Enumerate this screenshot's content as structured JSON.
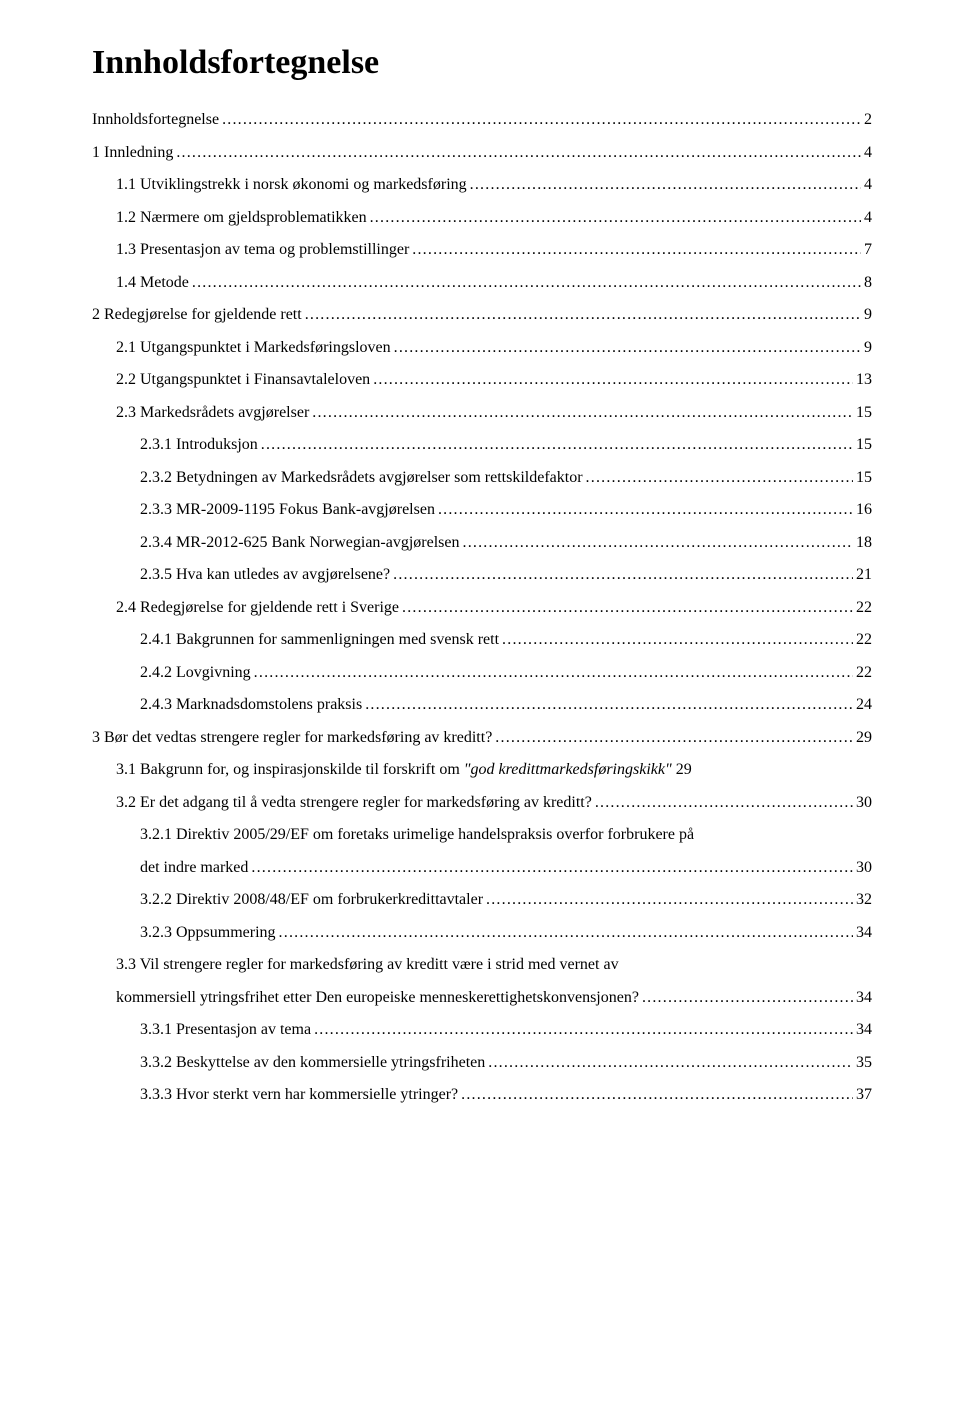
{
  "title": "Innholdsfortegnelse",
  "entries": [
    {
      "label": "Innholdsfortegnelse",
      "page": "2",
      "indent": 0,
      "italic": false
    },
    {
      "label": "1   Innledning",
      "page": "4",
      "indent": 0,
      "italic": false
    },
    {
      "label": "1.1   Utviklingstrekk i norsk økonomi og markedsføring",
      "page": "4",
      "indent": 1,
      "italic": false
    },
    {
      "label": "1.2   Nærmere om gjeldsproblematikken",
      "page": "4",
      "indent": 1,
      "italic": false
    },
    {
      "label": "1.3   Presentasjon av tema og problemstillinger",
      "page": "7",
      "indent": 1,
      "italic": false
    },
    {
      "label": "1.4   Metode",
      "page": "8",
      "indent": 1,
      "italic": false
    },
    {
      "label": "2   Redegjørelse for gjeldende rett",
      "page": "9",
      "indent": 0,
      "italic": false
    },
    {
      "label": "2.1   Utgangspunktet i Markedsføringsloven",
      "page": "9",
      "indent": 1,
      "italic": false
    },
    {
      "label": "2.2   Utgangspunktet i Finansavtaleloven",
      "page": "13",
      "indent": 1,
      "italic": false
    },
    {
      "label": "2.3   Markedsrådets avgjørelser",
      "page": "15",
      "indent": 1,
      "italic": false
    },
    {
      "label": "2.3.1   Introduksjon",
      "page": "15",
      "indent": 2,
      "italic": false
    },
    {
      "label": "2.3.2   Betydningen av Markedsrådets avgjørelser som rettskildefaktor",
      "page": "15",
      "indent": 2,
      "italic": false
    },
    {
      "label": "2.3.3   MR-2009-1195 Fokus Bank-avgjørelsen",
      "page": "16",
      "indent": 2,
      "italic": false
    },
    {
      "label": "2.3.4   MR-2012-625 Bank Norwegian-avgjørelsen",
      "page": "18",
      "indent": 2,
      "italic": false
    },
    {
      "label": "2.3.5   Hva kan utledes av avgjørelsene?",
      "page": "21",
      "indent": 2,
      "italic": false
    },
    {
      "label": "2.4   Redegjørelse for gjeldende rett i Sverige",
      "page": "22",
      "indent": 1,
      "italic": false
    },
    {
      "label": "2.4.1   Bakgrunnen for sammenligningen med svensk rett",
      "page": "22",
      "indent": 2,
      "italic": false
    },
    {
      "label": "2.4.2   Lovgivning",
      "page": "22",
      "indent": 2,
      "italic": false
    },
    {
      "label": "2.4.3   Marknadsdomstolens praksis",
      "page": "24",
      "indent": 2,
      "italic": false
    },
    {
      "label": "3   Bør det vedtas strengere regler for markedsføring av kreditt?",
      "page": "29",
      "indent": 0,
      "italic": false
    },
    {
      "label_pre": "3.1   Bakgrunn for, og inspirasjonskilde til forskrift om ",
      "label_ital": "\"god kredittmarkedsføringskikk\"",
      "page": "29",
      "indent": 1,
      "italic": true,
      "nodots": true
    },
    {
      "label": "3.2   Er det adgang til å vedta strengere regler for markedsføring av kreditt?",
      "page": "30",
      "indent": 1,
      "italic": false
    },
    {
      "label_multi1": "3.2.1   Direktiv 2005/29/EF om foretaks urimelige handelspraksis overfor forbrukere på",
      "label_multi2": "det indre marked",
      "page": "30",
      "indent": 2,
      "multi": true
    },
    {
      "label": "3.2.2   Direktiv 2008/48/EF om forbrukerkredittavtaler",
      "page": "32",
      "indent": 2,
      "italic": false
    },
    {
      "label": "3.2.3   Oppsummering",
      "page": "34",
      "indent": 2,
      "italic": false
    },
    {
      "label_multi1": "3.3   Vil strengere regler for markedsføring av kreditt være i strid med vernet av",
      "label_multi2": "kommersiell ytringsfrihet etter Den europeiske menneskerettighetskonvensjonen?",
      "page": "34",
      "indent": 1,
      "multi": true
    },
    {
      "label": "3.3.1   Presentasjon av tema",
      "page": "34",
      "indent": 2,
      "italic": false
    },
    {
      "label": "3.3.2   Beskyttelse av den kommersielle ytringsfriheten",
      "page": "35",
      "indent": 2,
      "italic": false
    },
    {
      "label": "3.3.3   Hvor sterkt vern har kommersielle ytringer?",
      "page": "37",
      "indent": 2,
      "italic": false
    }
  ]
}
